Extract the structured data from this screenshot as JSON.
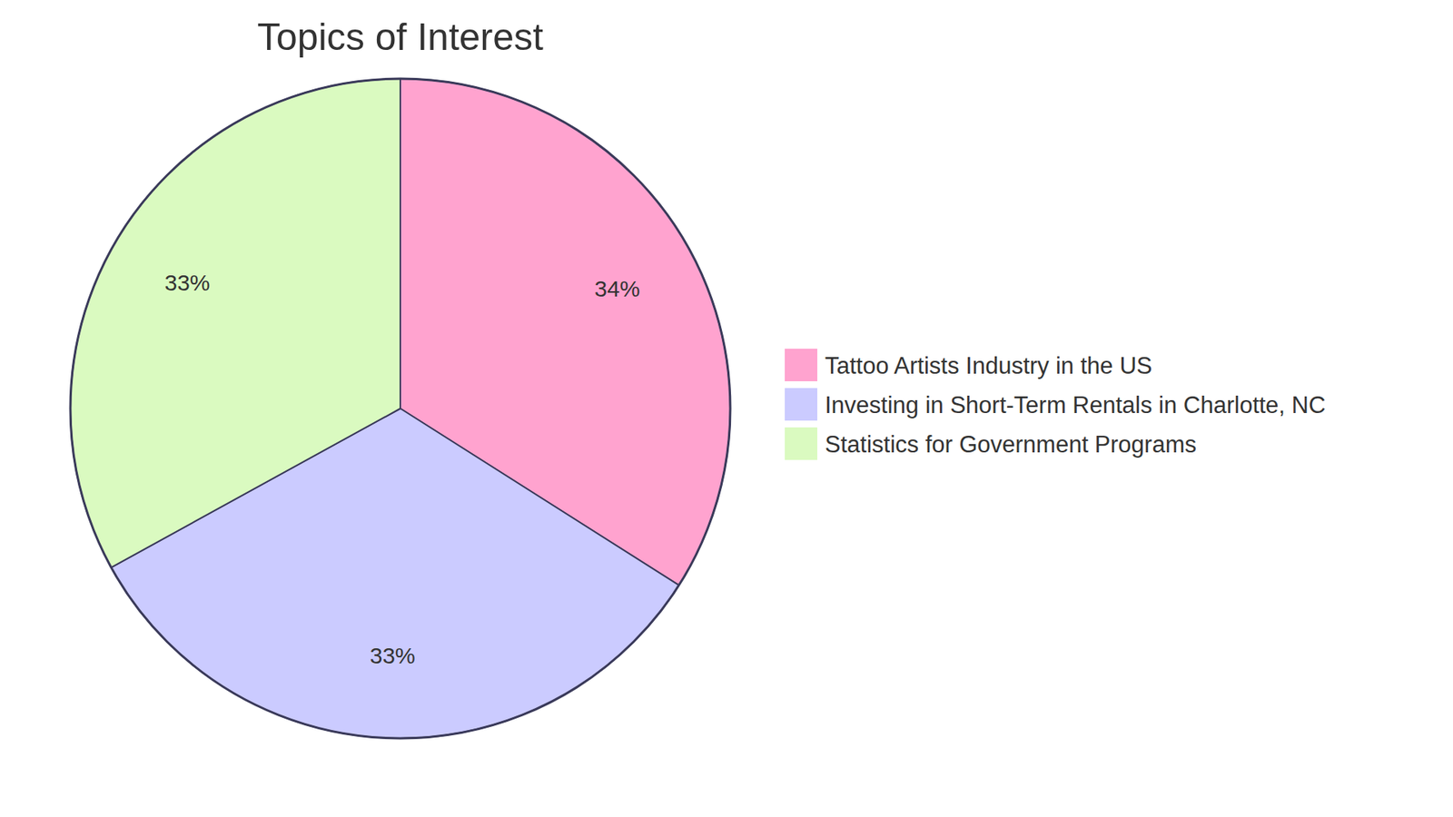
{
  "chart_data": {
    "type": "pie",
    "title": "Topics of Interest",
    "categories": [
      "Tattoo Artists Industry in the US",
      "Investing in Short-Term Rentals in Charlotte, NC",
      "Statistics for Government Programs"
    ],
    "values": [
      34,
      33,
      33
    ],
    "value_labels": [
      "34%",
      "33%",
      "33%"
    ],
    "colors": [
      "#ffa3cf",
      "#cbcbff",
      "#dafac0"
    ],
    "data_labels": true,
    "legend": "right"
  }
}
